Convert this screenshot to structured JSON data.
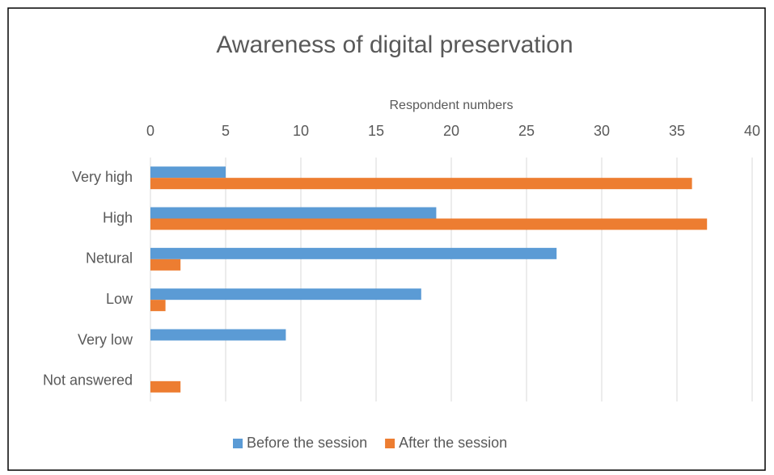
{
  "chart_data": {
    "type": "hbar",
    "title": "Awareness of digital preservation",
    "x_label": "Respondent numbers",
    "categories": [
      "Very high",
      "High",
      "Netural",
      "Low",
      "Very low",
      "Not answered"
    ],
    "series": [
      {
        "name": "Before the session",
        "color": "#5b9bd5",
        "values": [
          5,
          19,
          27,
          18,
          9,
          0
        ]
      },
      {
        "name": "After the session",
        "color": "#ed7d31",
        "values": [
          36,
          37,
          2,
          1,
          0,
          2
        ]
      }
    ],
    "xlim": [
      0,
      40
    ],
    "xticks": [
      0,
      5,
      10,
      15,
      20,
      25,
      30,
      35,
      40
    ],
    "grid": true,
    "legend": "bottom"
  }
}
